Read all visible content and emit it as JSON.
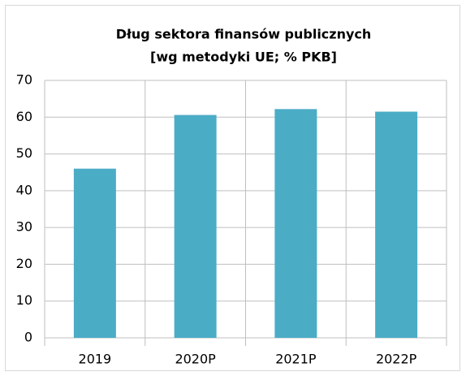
{
  "chart_data": {
    "type": "bar",
    "title": [
      "Dług sektora finansów publicznych",
      "[wg metodyki UE; % PKB]"
    ],
    "categories": [
      "2019",
      "2020P",
      "2021P",
      "2022P"
    ],
    "values": [
      46,
      60.6,
      62.2,
      61.5
    ],
    "color": "#4bacc6",
    "ylim": [
      0,
      70
    ],
    "yticks": [
      0,
      10,
      20,
      30,
      40,
      50,
      60,
      70
    ],
    "grid": true
  }
}
